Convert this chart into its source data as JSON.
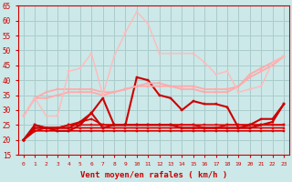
{
  "background_color": "#cce8e8",
  "grid_color": "#aacccc",
  "xlabel": "Vent moyen/en rafales ( km/h )",
  "xlim": [
    -0.5,
    23.5
  ],
  "ylim": [
    15,
    65
  ],
  "yticks": [
    15,
    20,
    25,
    30,
    35,
    40,
    45,
    50,
    55,
    60,
    65
  ],
  "xticks": [
    0,
    1,
    2,
    3,
    4,
    5,
    6,
    7,
    8,
    9,
    10,
    11,
    12,
    13,
    14,
    15,
    16,
    17,
    18,
    19,
    20,
    21,
    22,
    23
  ],
  "series": [
    {
      "x": [
        0,
        1,
        2,
        3,
        4,
        5,
        6,
        7,
        8,
        9,
        10,
        11,
        12,
        13,
        14,
        15,
        16,
        17,
        18,
        19,
        20,
        21,
        22,
        23
      ],
      "y": [
        20,
        23,
        23,
        23,
        23,
        23,
        23,
        23,
        23,
        23,
        23,
        23,
        23,
        23,
        23,
        23,
        23,
        23,
        23,
        23,
        23,
        23,
        23,
        23
      ],
      "color": "#dd0000",
      "lw": 1.2,
      "marker": "s",
      "ms": 1.8
    },
    {
      "x": [
        0,
        1,
        2,
        3,
        4,
        5,
        6,
        7,
        8,
        9,
        10,
        11,
        12,
        13,
        14,
        15,
        16,
        17,
        18,
        19,
        20,
        21,
        22,
        23
      ],
      "y": [
        20,
        23,
        24,
        24,
        24,
        24,
        24,
        24,
        24,
        24,
        24,
        24,
        24,
        24,
        24,
        24,
        24,
        24,
        24,
        24,
        24,
        24,
        24,
        24
      ],
      "color": "#dd0000",
      "lw": 1.2,
      "marker": "s",
      "ms": 1.8
    },
    {
      "x": [
        0,
        1,
        2,
        3,
        4,
        5,
        6,
        7,
        8,
        9,
        10,
        11,
        12,
        13,
        14,
        15,
        16,
        17,
        18,
        19,
        20,
        21,
        22,
        23
      ],
      "y": [
        20,
        24,
        24,
        24,
        25,
        25,
        25,
        25,
        25,
        25,
        25,
        25,
        25,
        25,
        25,
        25,
        25,
        25,
        25,
        25,
        25,
        25,
        25,
        25
      ],
      "color": "#dd0000",
      "lw": 1.2,
      "marker": "s",
      "ms": 1.8
    },
    {
      "x": [
        0,
        1,
        2,
        3,
        4,
        5,
        6,
        7,
        8,
        9,
        10,
        11,
        12,
        13,
        14,
        15,
        16,
        17,
        18,
        19,
        20,
        21,
        22,
        23
      ],
      "y": [
        20,
        25,
        24,
        24,
        25,
        26,
        27,
        25,
        25,
        25,
        25,
        25,
        25,
        25,
        25,
        25,
        24,
        24,
        25,
        25,
        25,
        25,
        25,
        25
      ],
      "color": "#dd0000",
      "lw": 1.2,
      "marker": "s",
      "ms": 1.8
    },
    {
      "x": [
        0,
        1,
        2,
        3,
        4,
        5,
        6,
        7,
        8,
        9,
        10,
        11,
        12,
        13,
        14,
        15,
        16,
        17,
        18,
        19,
        20,
        21,
        22,
        23
      ],
      "y": [
        20,
        24,
        24,
        24,
        24,
        26,
        29,
        34,
        25,
        25,
        25,
        25,
        25,
        25,
        24,
        24,
        24,
        24,
        24,
        24,
        24,
        25,
        26,
        32
      ],
      "color": "#cc0000",
      "lw": 1.5,
      "marker": "s",
      "ms": 2.0
    },
    {
      "x": [
        0,
        1,
        2,
        3,
        4,
        5,
        6,
        7,
        8,
        9,
        10,
        11,
        12,
        13,
        14,
        15,
        16,
        17,
        18,
        19,
        20,
        21,
        22,
        23
      ],
      "y": [
        20,
        25,
        24,
        23,
        23,
        25,
        29,
        24,
        25,
        25,
        41,
        40,
        35,
        34,
        30,
        33,
        32,
        32,
        31,
        24,
        25,
        27,
        27,
        32
      ],
      "color": "#cc0000",
      "lw": 1.5,
      "marker": "s",
      "ms": 2.0
    },
    {
      "x": [
        0,
        1,
        2,
        3,
        4,
        5,
        6,
        7,
        8,
        9,
        10,
        11,
        12,
        13,
        14,
        15,
        16,
        17,
        18,
        19,
        20,
        21,
        22,
        23
      ],
      "y": [
        28,
        34,
        34,
        35,
        36,
        36,
        36,
        35,
        36,
        37,
        38,
        38,
        38,
        38,
        37,
        37,
        36,
        36,
        36,
        38,
        41,
        43,
        45,
        48
      ],
      "color": "#ffaaaa",
      "lw": 1.3,
      "marker": "s",
      "ms": 2.0
    },
    {
      "x": [
        0,
        1,
        2,
        3,
        4,
        5,
        6,
        7,
        8,
        9,
        10,
        11,
        12,
        13,
        14,
        15,
        16,
        17,
        18,
        19,
        20,
        21,
        22,
        23
      ],
      "y": [
        28,
        34,
        36,
        37,
        37,
        37,
        37,
        36,
        36,
        37,
        38,
        39,
        39,
        38,
        38,
        38,
        37,
        37,
        37,
        38,
        42,
        44,
        46,
        48
      ],
      "color": "#ffaaaa",
      "lw": 1.3,
      "marker": "s",
      "ms": 2.0
    },
    {
      "x": [
        0,
        1,
        2,
        3,
        4,
        5,
        6,
        7,
        8,
        9,
        10,
        11,
        12,
        13,
        14,
        15,
        16,
        17,
        18,
        19,
        20,
        21,
        22,
        23
      ],
      "y": [
        28,
        34,
        28,
        28,
        43,
        44,
        49,
        35,
        48,
        56,
        63,
        59,
        49,
        49,
        49,
        49,
        46,
        42,
        43,
        36,
        37,
        38,
        46,
        48
      ],
      "color": "#ffbbbb",
      "lw": 1.0,
      "marker": "s",
      "ms": 1.8
    }
  ]
}
